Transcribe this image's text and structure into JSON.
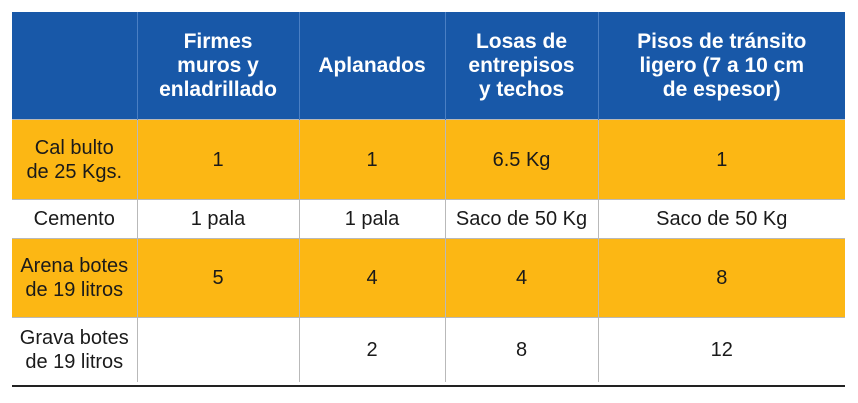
{
  "table": {
    "headers": [
      "",
      "Firmes\nmuros y\nenladrillado",
      "Aplanados",
      "Losas de\nentrepisos\ny techos",
      "Pisos de tránsito\nligero (7 a 10 cm\nde espesor)"
    ],
    "rows": [
      {
        "label": "Cal bulto\nde 25 Kgs.",
        "cells": [
          "1",
          "1",
          "6.5 Kg",
          "1"
        ]
      },
      {
        "label": "Cemento",
        "cells": [
          "1 pala",
          "1 pala",
          "Saco de 50 Kg",
          "Saco de 50 Kg"
        ]
      },
      {
        "label": "Arena botes\nde 19 litros",
        "cells": [
          "5",
          "4",
          "4",
          "8"
        ]
      },
      {
        "label": "Grava botes\nde 19 litros",
        "cells": [
          "",
          "2",
          "8",
          "12"
        ]
      }
    ]
  },
  "colors": {
    "header_bg": "#1858a8",
    "highlight_row_bg": "#fcb714",
    "plain_row_bg": "#ffffff"
  }
}
